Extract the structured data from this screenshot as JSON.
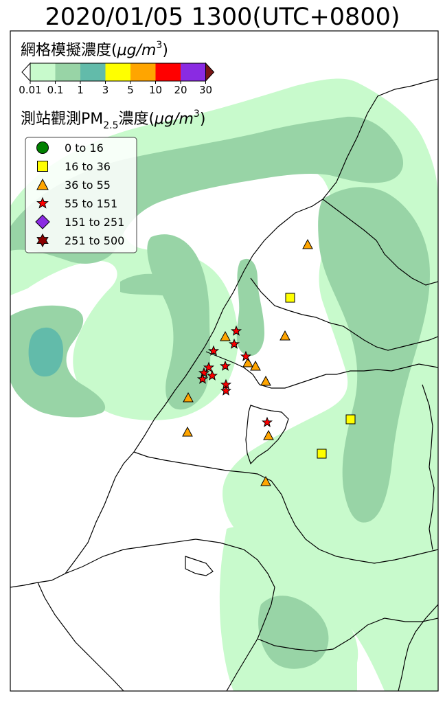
{
  "title": "2020/01/05 1300(UTC+0800)",
  "grid_label": "網格模擬濃度(",
  "grid_unit": "μg/m",
  "unit_sup": "3",
  "close_paren": ")",
  "station_label": "測站觀測PM",
  "station_sub": "2.5",
  "station_label2": "濃度(",
  "colorbar": {
    "ticks": [
      "0.01",
      "0.1",
      "1",
      "3",
      "5",
      "10",
      "20",
      "30"
    ],
    "colors": [
      "#c8facc",
      "#98d4a6",
      "#62bbaa",
      "#ffff00",
      "#ffa500",
      "#ff0000",
      "#8a2be2",
      "#7a1515"
    ]
  },
  "legend": [
    {
      "label": "0 to 16",
      "marker": "circle",
      "color": "#008000"
    },
    {
      "label": "16 to 36",
      "marker": "square",
      "color": "#ffff00"
    },
    {
      "label": "36 to 55",
      "marker": "triangle",
      "color": "#ffa500"
    },
    {
      "label": "55 to 151",
      "marker": "star",
      "color": "#ff0000"
    },
    {
      "label": "151 to 251",
      "marker": "diamond",
      "color": "#8a2be2"
    },
    {
      "label": "251 to 500",
      "marker": "star6",
      "color": "#8b0000"
    }
  ]
}
